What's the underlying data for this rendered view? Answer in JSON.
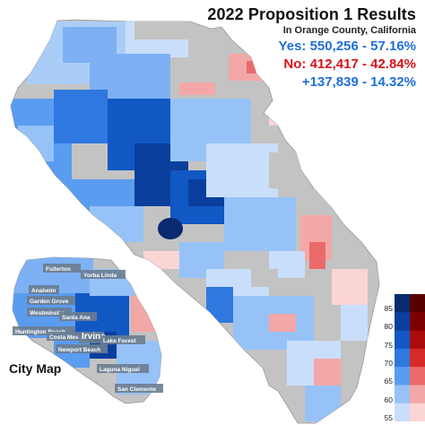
{
  "header": {
    "title": "2022 Proposition 1 Results",
    "subtitle": "In Orange County, California",
    "yes_line": "Yes: 550,256 - 57.16%",
    "no_line": "No: 412,417 - 42.84%",
    "margin_line": "+137,839 - 14.32%"
  },
  "inset": {
    "title": "City Map",
    "cities": [
      "Fullerton",
      "Yorba Linda",
      "Anaheim",
      "Garden Grove",
      "Westminster",
      "Santa Ana",
      "Huntington Beach",
      "Costa Mesa",
      "Irvine",
      "Lake Forest",
      "Newport Beach",
      "Laguna Niguel",
      "San Clemente"
    ]
  },
  "legend": {
    "ticks": [
      "85",
      "80",
      "75",
      "70",
      "65",
      "60",
      "55"
    ],
    "blue_scale": [
      "#082a6e",
      "#0b3f9e",
      "#1158c4",
      "#2f78e0",
      "#5a9cf0",
      "#96c2f7",
      "#c9defa"
    ],
    "red_scale": [
      "#560000",
      "#7d0000",
      "#a80c0c",
      "#d72a2a",
      "#ea6a6a",
      "#f4a7a7",
      "#fbd5d5"
    ]
  },
  "colors": {
    "background": "#ffffff",
    "no_data": "#c3c3c3",
    "yes_text": "#1e6fd6",
    "no_text": "#d8141c"
  }
}
